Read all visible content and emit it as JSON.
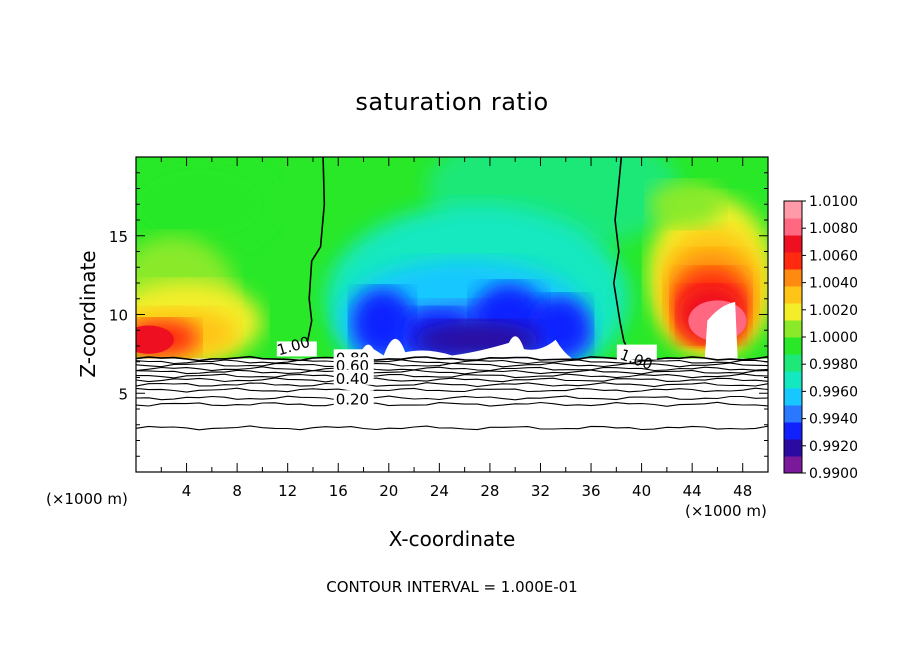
{
  "chart_data": {
    "type": "heatmap",
    "title": "saturation ratio",
    "xlabel": "X-coordinate",
    "ylabel": "Z-coordinate",
    "x_unit": "(×1000 m)",
    "z_unit": "(×1000 m)",
    "xlim": [
      0,
      50
    ],
    "zlim": [
      0,
      20
    ],
    "x_ticks": [
      4,
      8,
      12,
      16,
      20,
      24,
      28,
      32,
      36,
      40,
      44,
      48
    ],
    "z_ticks": [
      5,
      10,
      15
    ],
    "colorbar": {
      "min": 0.99,
      "max": 1.01,
      "ticks": [
        "1.0100",
        "1.0080",
        "1.0060",
        "1.0040",
        "1.0020",
        "1.0000",
        "0.9980",
        "0.9960",
        "0.9940",
        "0.9920",
        "0.9900"
      ],
      "colors": [
        "#7a1a9a",
        "#2a0aa0",
        "#1020ff",
        "#2a78ff",
        "#16c8ff",
        "#14e8c0",
        "#1ee878",
        "#28e828",
        "#8aea2a",
        "#f4ee2a",
        "#ffc418",
        "#ff8a10",
        "#ff2a10",
        "#ee1020",
        "#ff6880",
        "#ff9aa8"
      ]
    },
    "contour_labels": [
      "1.00",
      "1.00",
      "0.80",
      "0.60",
      "0.40",
      "0.20"
    ],
    "contour_interval_note": "CONTOUR INTERVAL = 1.000E-01"
  }
}
